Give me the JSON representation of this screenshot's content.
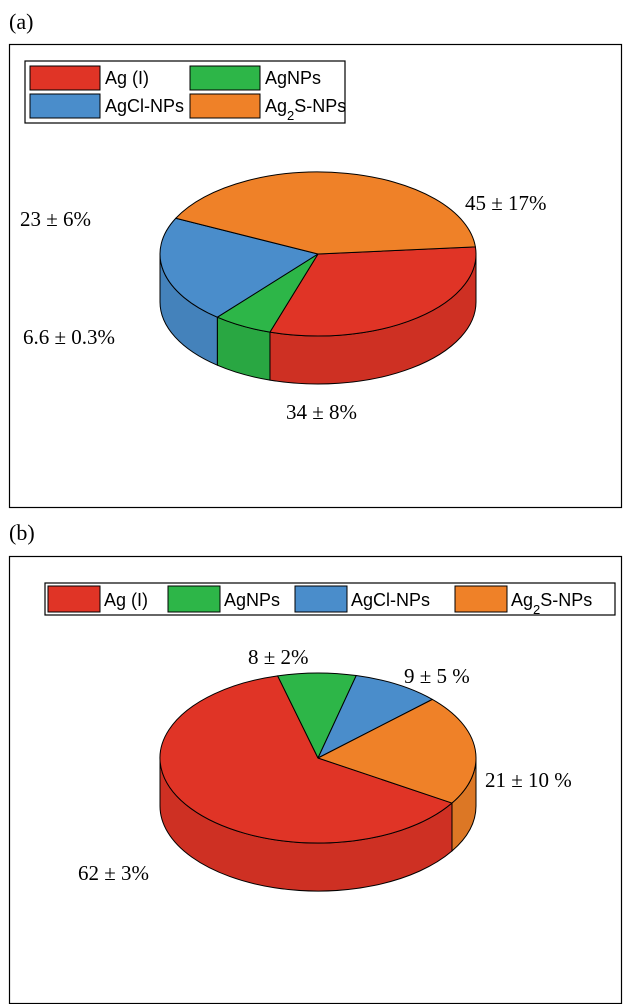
{
  "panels": [
    {
      "label": "(a)"
    },
    {
      "label": "(b)"
    }
  ],
  "legend": {
    "items": [
      {
        "label_pre": "Ag (I)",
        "label_sub": "",
        "label_post": "",
        "color": "#e03426"
      },
      {
        "label_pre": "AgNPs",
        "label_sub": "",
        "label_post": "",
        "color": "#2db648"
      },
      {
        "label_pre": "AgCl-NPs",
        "label_sub": "",
        "label_post": "",
        "color": "#4a8dcb"
      },
      {
        "label_pre": "Ag",
        "label_sub": "2",
        "label_post": "S-NPs",
        "color": "#ef8128"
      }
    ]
  },
  "chart_data": [
    {
      "type": "pie",
      "style": "3d",
      "panel": "(a)",
      "legend_layout": "2x2 grid, top-left",
      "slices": [
        {
          "name": "Ag (I)",
          "value": 34,
          "label": "34 ± 8%",
          "color": "#e03426"
        },
        {
          "name": "AgNPs",
          "value": 6.6,
          "label": "6.6 ± 0.3%",
          "color": "#2db648"
        },
        {
          "name": "AgCl-NPs",
          "value": 23,
          "label": "23 ± 6%",
          "color": "#4a8dcb"
        },
        {
          "name": "Ag2S-NPs",
          "value": 45,
          "label": "45 ± 17%",
          "color": "#ef8128"
        }
      ]
    },
    {
      "type": "pie",
      "style": "3d",
      "panel": "(b)",
      "legend_layout": "single row, top",
      "slices": [
        {
          "name": "Ag (I)",
          "value": 62,
          "label": "62 ± 3%",
          "color": "#e03426"
        },
        {
          "name": "AgNPs",
          "value": 8,
          "label": "8 ± 2%",
          "color": "#2db648"
        },
        {
          "name": "AgCl-NPs",
          "value": 9,
          "label": "9 ± 5 %",
          "color": "#4a8dcb"
        },
        {
          "name": "Ag2S-NPs",
          "value": 21,
          "label": "21 ± 10 %",
          "color": "#ef8128"
        }
      ]
    }
  ]
}
